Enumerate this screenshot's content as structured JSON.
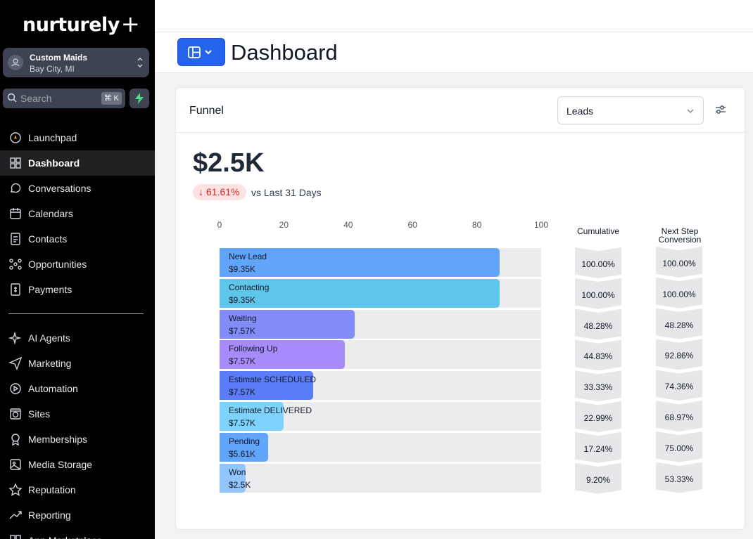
{
  "brand": {
    "name": "nurturely",
    "plus": "+"
  },
  "location": {
    "name": "Custom Maids",
    "city": "Bay City, MI"
  },
  "search": {
    "placeholder": "Search",
    "shortcut": "⌘ K"
  },
  "nav": {
    "primary": [
      {
        "label": "Launchpad",
        "icon": "rocket-icon"
      },
      {
        "label": "Dashboard",
        "icon": "grid-icon",
        "active": true
      },
      {
        "label": "Conversations",
        "icon": "chat-icon"
      },
      {
        "label": "Calendars",
        "icon": "calendar-icon"
      },
      {
        "label": "Contacts",
        "icon": "contacts-icon"
      },
      {
        "label": "Opportunities",
        "icon": "network-icon"
      },
      {
        "label": "Payments",
        "icon": "invoice-icon"
      }
    ],
    "secondary": [
      {
        "label": "AI Agents",
        "icon": "sparkle-icon"
      },
      {
        "label": "Marketing",
        "icon": "send-icon"
      },
      {
        "label": "Automation",
        "icon": "play-icon"
      },
      {
        "label": "Sites",
        "icon": "globe-icon"
      },
      {
        "label": "Memberships",
        "icon": "badge-icon"
      },
      {
        "label": "Media Storage",
        "icon": "image-icon"
      },
      {
        "label": "Reputation",
        "icon": "star-icon"
      },
      {
        "label": "Reporting",
        "icon": "trend-icon"
      },
      {
        "label": "App Marketplace",
        "icon": "apps-icon"
      }
    ]
  },
  "page": {
    "title": "Dashboard"
  },
  "widget": {
    "title": "Funnel",
    "select_value": "Leads",
    "total": "$2.5K",
    "delta": "61.61%",
    "delta_label": "vs Last 31 Days",
    "cumulative_header": "Cumulative",
    "next_header_line1": "Next Step",
    "next_header_line2": "Conversion",
    "axis_ticks": [
      "0",
      "20",
      "40",
      "60",
      "80",
      "100"
    ]
  },
  "chart_data": {
    "type": "bar",
    "title": "Funnel",
    "xlim": [
      0,
      100
    ],
    "categories": [
      "New Lead",
      "Contacting",
      "Waiting",
      "Following Up",
      "Estimate SCHEDULED",
      "Estimate DELIVERED",
      "Pending",
      "Won"
    ],
    "values": [
      87,
      87,
      42,
      39,
      29,
      20,
      15,
      8
    ],
    "amounts": [
      "$9.35K",
      "$9.35K",
      "$7.57K",
      "$7.57K",
      "$7.57K",
      "$7.57K",
      "$5.61K",
      "$2.5K"
    ],
    "cumulative": [
      "100.00%",
      "100.00%",
      "48.28%",
      "44.83%",
      "33.33%",
      "22.99%",
      "17.24%",
      "9.20%"
    ],
    "next_step": [
      "100.00%",
      "100.00%",
      "48.28%",
      "92.86%",
      "74.36%",
      "68.97%",
      "75.00%",
      "53.33%"
    ],
    "colors": [
      "#60a5fa",
      "#5ec6e8",
      "#818cf8",
      "#a78bfa",
      "#5b7cf7",
      "#7dd3fc",
      "#60a5fa",
      "#93c5fd"
    ]
  }
}
